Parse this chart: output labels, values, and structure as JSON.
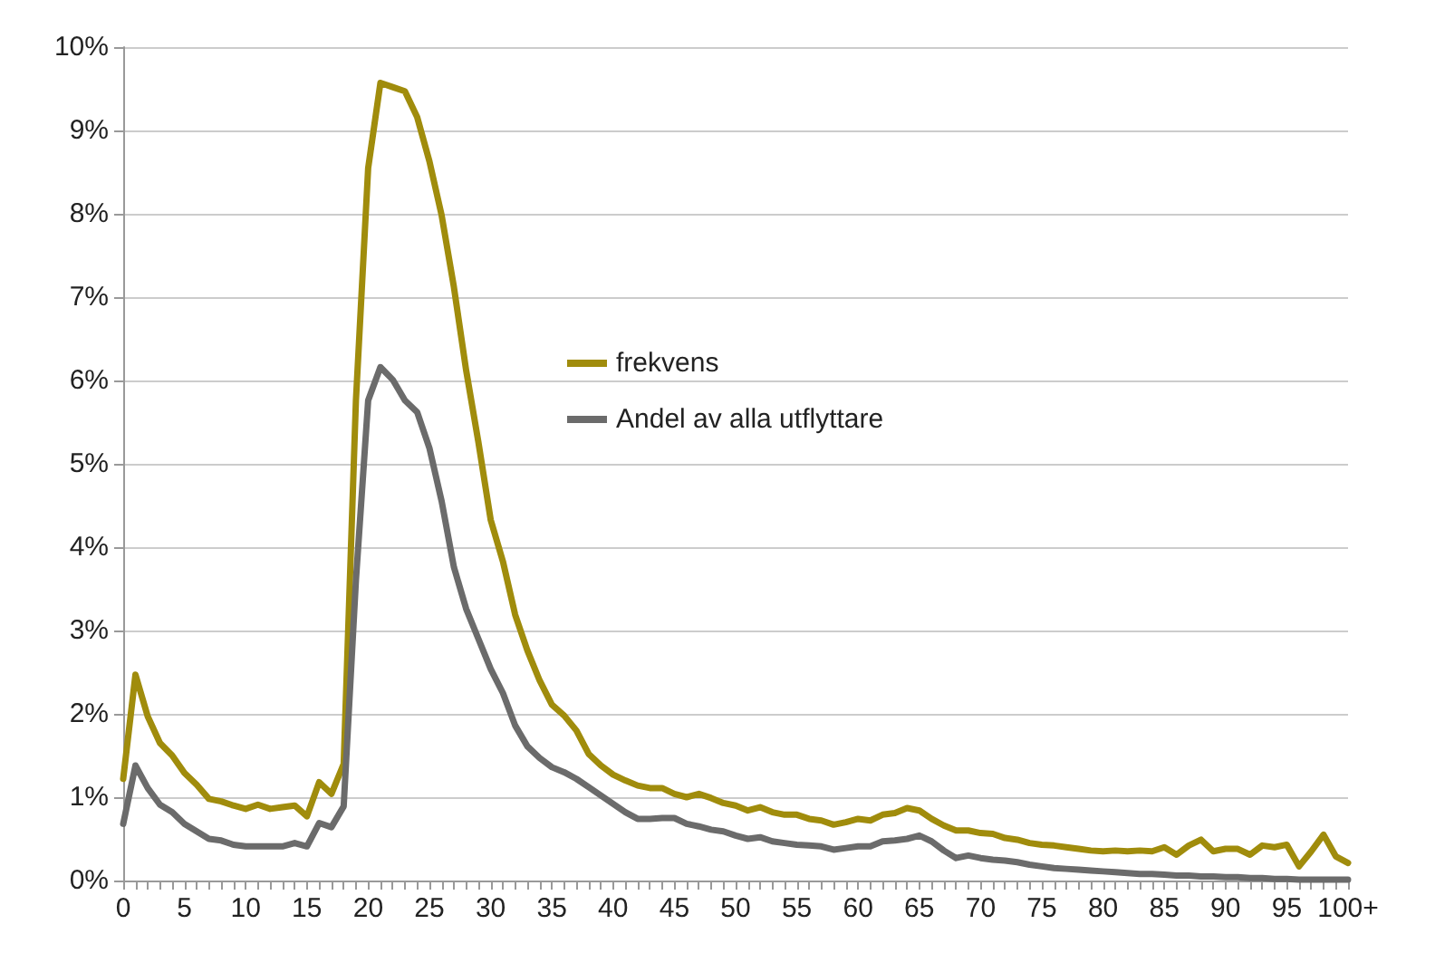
{
  "chart_data": {
    "type": "line",
    "categories": [
      "0",
      null,
      null,
      null,
      null,
      "5",
      null,
      null,
      null,
      null,
      "10",
      null,
      null,
      null,
      null,
      "15",
      null,
      null,
      null,
      null,
      "20",
      null,
      null,
      null,
      null,
      "25",
      null,
      null,
      null,
      null,
      "30",
      null,
      null,
      null,
      null,
      "35",
      null,
      null,
      null,
      null,
      "40",
      null,
      null,
      null,
      null,
      "45",
      null,
      null,
      null,
      null,
      "50",
      null,
      null,
      null,
      null,
      "55",
      null,
      null,
      null,
      null,
      "60",
      null,
      null,
      null,
      null,
      "65",
      null,
      null,
      null,
      null,
      "70",
      null,
      null,
      null,
      null,
      "75",
      null,
      null,
      null,
      null,
      "80",
      null,
      null,
      null,
      null,
      "85",
      null,
      null,
      null,
      null,
      "90",
      null,
      null,
      null,
      null,
      "95",
      null,
      null,
      null,
      null,
      "100+"
    ],
    "series": [
      {
        "name": "frekvens",
        "color": "#a08c0c",
        "values": [
          1.22,
          2.47,
          1.97,
          1.65,
          1.5,
          1.29,
          1.15,
          0.98,
          0.95,
          0.9,
          0.86,
          0.91,
          0.86,
          0.88,
          0.9,
          0.77,
          1.18,
          1.04,
          1.4,
          5.76,
          8.55,
          9.57,
          9.52,
          9.47,
          9.16,
          8.63,
          7.98,
          7.12,
          6.12,
          5.26,
          4.33,
          3.83,
          3.19,
          2.76,
          2.4,
          2.11,
          1.98,
          1.8,
          1.52,
          1.38,
          1.27,
          1.2,
          1.14,
          1.11,
          1.11,
          1.04,
          1.0,
          1.04,
          0.99,
          0.93,
          0.9,
          0.84,
          0.88,
          0.82,
          0.79,
          0.79,
          0.74,
          0.72,
          0.67,
          0.7,
          0.74,
          0.72,
          0.79,
          0.81,
          0.87,
          0.84,
          0.74,
          0.66,
          0.6,
          0.6,
          0.57,
          0.56,
          0.51,
          0.49,
          0.45,
          0.43,
          0.42,
          0.4,
          0.38,
          0.36,
          0.35,
          0.36,
          0.35,
          0.36,
          0.35,
          0.4,
          0.31,
          0.42,
          0.49,
          0.35,
          0.38,
          0.38,
          0.31,
          0.42,
          0.4,
          0.43,
          0.17,
          0.35,
          0.55,
          0.29,
          0.21
        ]
      },
      {
        "name": "Andel av alla utflyttare",
        "color": "#6b6b6b",
        "values": [
          0.68,
          1.38,
          1.11,
          0.91,
          0.82,
          0.68,
          0.59,
          0.5,
          0.48,
          0.43,
          0.41,
          0.41,
          0.41,
          0.41,
          0.45,
          0.41,
          0.69,
          0.64,
          0.89,
          3.6,
          5.76,
          6.16,
          6.01,
          5.76,
          5.62,
          5.19,
          4.55,
          3.76,
          3.26,
          2.9,
          2.54,
          2.25,
          1.86,
          1.61,
          1.47,
          1.36,
          1.3,
          1.22,
          1.12,
          1.02,
          0.92,
          0.82,
          0.74,
          0.74,
          0.75,
          0.75,
          0.68,
          0.65,
          0.61,
          0.59,
          0.54,
          0.5,
          0.52,
          0.47,
          0.45,
          0.43,
          0.42,
          0.41,
          0.37,
          0.39,
          0.41,
          0.41,
          0.47,
          0.48,
          0.5,
          0.54,
          0.47,
          0.36,
          0.27,
          0.3,
          0.27,
          0.25,
          0.24,
          0.22,
          0.19,
          0.17,
          0.15,
          0.14,
          0.13,
          0.12,
          0.11,
          0.1,
          0.09,
          0.08,
          0.08,
          0.07,
          0.06,
          0.06,
          0.05,
          0.05,
          0.04,
          0.04,
          0.03,
          0.03,
          0.02,
          0.02,
          0.01,
          0.01,
          0.01,
          0.01,
          0.01
        ]
      }
    ],
    "ylim": [
      0,
      10
    ],
    "yticks": [
      {
        "value": 0,
        "label": "0%"
      },
      {
        "value": 1,
        "label": "1%"
      },
      {
        "value": 2,
        "label": "2%"
      },
      {
        "value": 3,
        "label": "3%"
      },
      {
        "value": 4,
        "label": "4%"
      },
      {
        "value": 5,
        "label": "5%"
      },
      {
        "value": 6,
        "label": "6%"
      },
      {
        "value": 7,
        "label": "7%"
      },
      {
        "value": 8,
        "label": "8%"
      },
      {
        "value": 9,
        "label": "9%"
      },
      {
        "value": 10,
        "label": "10%"
      }
    ],
    "grid": "y",
    "legend": "center",
    "marker": "none",
    "line_style": "solid"
  }
}
